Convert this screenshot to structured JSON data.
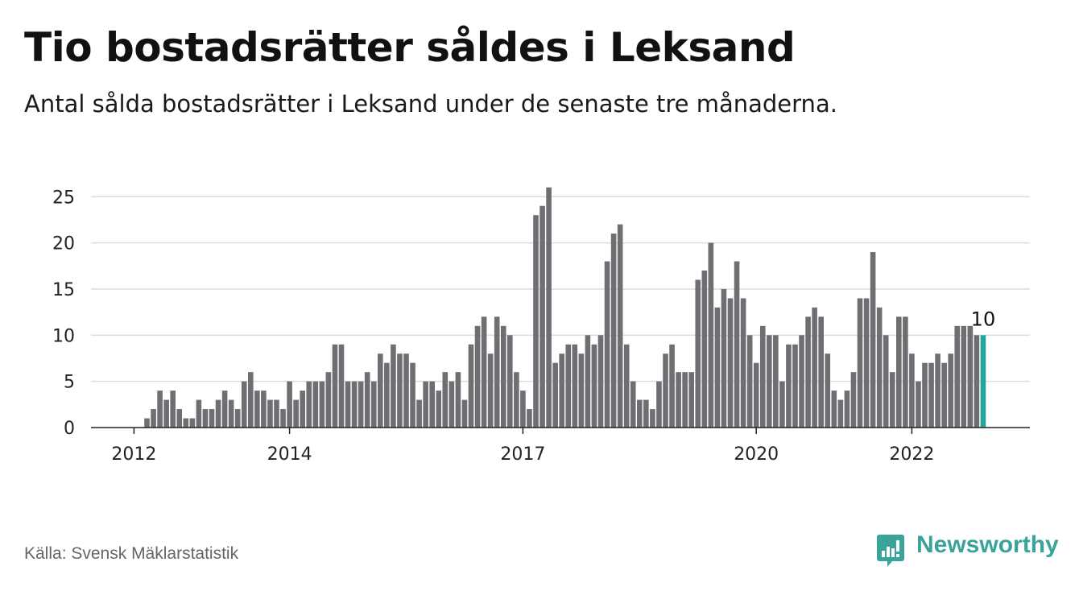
{
  "title": "Tio bostadsrätter såldes i Leksand",
  "subtitle": "Antal sålda bostadsrätter i Leksand under de senaste tre månaderna.",
  "source": "Källa: Svensk Mäklarstatistik",
  "brand": {
    "name": "Newsworthy",
    "icon": "newsworthy-logo-icon",
    "color": "#3aa39a"
  },
  "chart_data": {
    "type": "bar",
    "frequency": "monthly",
    "start": "2012-01",
    "values": [
      0,
      0,
      1,
      2,
      4,
      3,
      4,
      2,
      1,
      1,
      3,
      2,
      2,
      3,
      4,
      3,
      2,
      5,
      6,
      4,
      4,
      3,
      3,
      2,
      5,
      3,
      4,
      5,
      5,
      5,
      6,
      9,
      9,
      5,
      5,
      5,
      6,
      5,
      8,
      7,
      9,
      8,
      8,
      7,
      3,
      5,
      5,
      4,
      6,
      5,
      6,
      3,
      9,
      11,
      12,
      8,
      12,
      11,
      10,
      6,
      4,
      2,
      23,
      24,
      26,
      7,
      8,
      9,
      9,
      8,
      10,
      9,
      10,
      18,
      21,
      22,
      9,
      5,
      3,
      3,
      2,
      5,
      8,
      9,
      6,
      6,
      6,
      16,
      17,
      20,
      13,
      15,
      14,
      18,
      14,
      10,
      7,
      11,
      10,
      10,
      5,
      9,
      9,
      10,
      12,
      13,
      12,
      8,
      4,
      3,
      4,
      6,
      14,
      14,
      19,
      13,
      10,
      6,
      12,
      12,
      8,
      5,
      7,
      7,
      8,
      7,
      8,
      11,
      11,
      11,
      10,
      10
    ],
    "highlight": {
      "index": 131,
      "label": "10",
      "color": "#23a69a"
    },
    "bar_color": "#6f6e73",
    "x_tick_labels": [
      "2012",
      "2014",
      "2017",
      "2020",
      "2022"
    ],
    "y_ticks": [
      0,
      5,
      10,
      15,
      20,
      25
    ],
    "ylim": [
      0,
      26
    ],
    "grid": true
  }
}
